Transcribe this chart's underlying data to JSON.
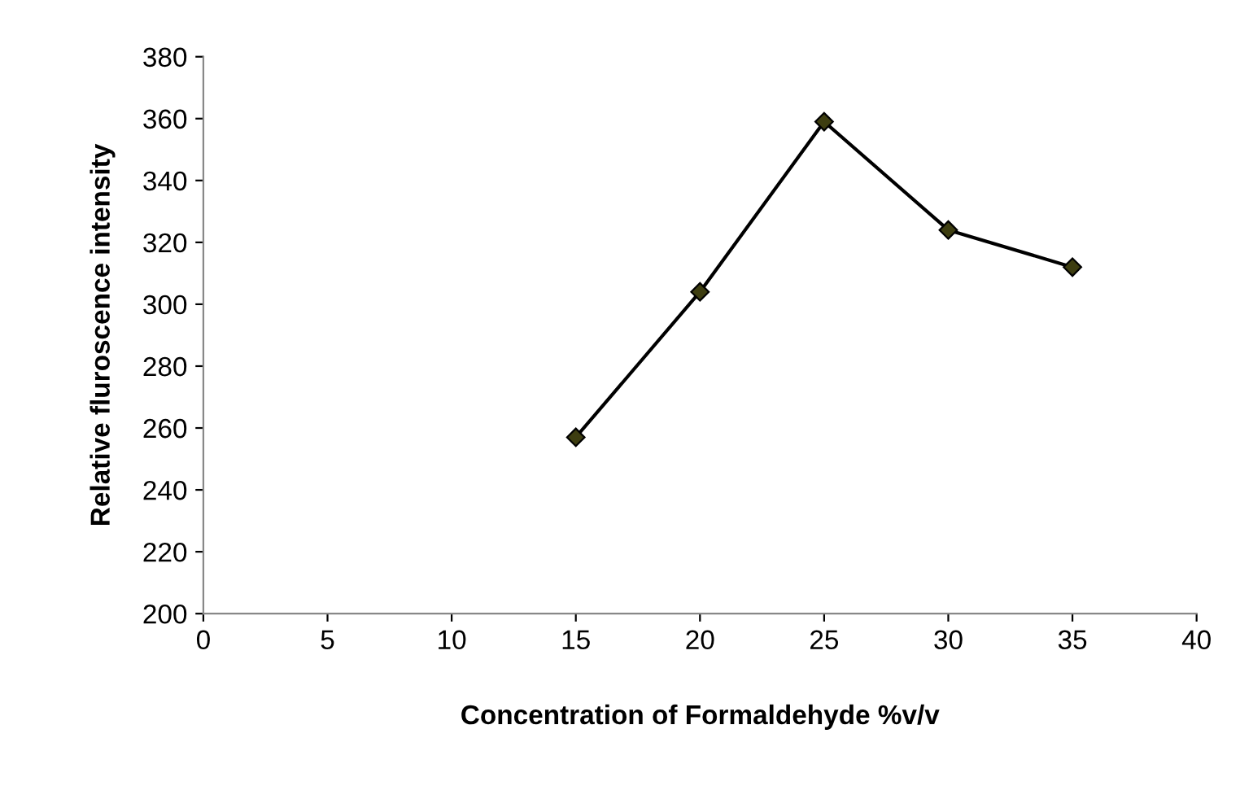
{
  "chart_data": {
    "type": "line",
    "xlabel": "Concentration of Formaldehyde %v/v",
    "ylabel": "Relative fluroscence intensity",
    "x": [
      15,
      20,
      25,
      30,
      35
    ],
    "series": [
      {
        "color": "#000000",
        "values": [
          257,
          304,
          359,
          324,
          312
        ]
      }
    ],
    "marker": "diamond",
    "xlim": [
      0,
      40
    ],
    "xticks": [
      0,
      5,
      10,
      15,
      20,
      25,
      30,
      35,
      40
    ],
    "ylim": [
      200,
      380
    ],
    "yticks": [
      200,
      220,
      240,
      260,
      280,
      300,
      320,
      340,
      360,
      380
    ],
    "grid": false,
    "legend": false
  }
}
